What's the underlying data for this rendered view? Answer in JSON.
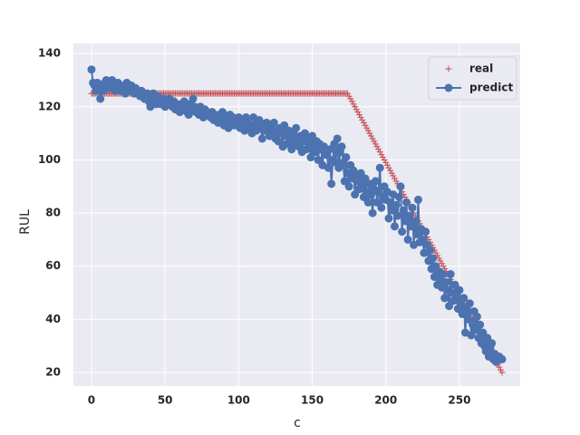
{
  "chart_data": {
    "type": "line",
    "xlabel": "c",
    "ylabel": "RUL",
    "xlim": [
      -12.3,
      291.3
    ],
    "ylim": [
      14.9,
      143.8
    ],
    "xticks": [
      0,
      50,
      100,
      150,
      200,
      250
    ],
    "yticks": [
      20,
      40,
      60,
      80,
      100,
      120,
      140
    ],
    "grid": true,
    "legend": "upper right",
    "x": [
      0,
      1,
      2,
      3,
      4,
      5,
      6,
      7,
      8,
      9,
      10,
      11,
      12,
      13,
      14,
      15,
      16,
      17,
      18,
      19,
      20,
      21,
      22,
      23,
      24,
      25,
      26,
      27,
      28,
      29,
      30,
      31,
      32,
      33,
      34,
      35,
      36,
      37,
      38,
      39,
      40,
      41,
      42,
      43,
      44,
      45,
      46,
      47,
      48,
      49,
      50,
      51,
      52,
      53,
      54,
      55,
      56,
      57,
      58,
      59,
      60,
      61,
      62,
      63,
      64,
      65,
      66,
      67,
      68,
      69,
      70,
      71,
      72,
      73,
      74,
      75,
      76,
      77,
      78,
      79,
      80,
      81,
      82,
      83,
      84,
      85,
      86,
      87,
      88,
      89,
      90,
      91,
      92,
      93,
      94,
      95,
      96,
      97,
      98,
      99,
      100,
      101,
      102,
      103,
      104,
      105,
      106,
      107,
      108,
      109,
      110,
      111,
      112,
      113,
      114,
      115,
      116,
      117,
      118,
      119,
      120,
      121,
      122,
      123,
      124,
      125,
      126,
      127,
      128,
      129,
      130,
      131,
      132,
      133,
      134,
      135,
      136,
      137,
      138,
      139,
      140,
      141,
      142,
      143,
      144,
      145,
      146,
      147,
      148,
      149,
      150,
      151,
      152,
      153,
      154,
      155,
      156,
      157,
      158,
      159,
      160,
      161,
      162,
      163,
      164,
      165,
      166,
      167,
      168,
      169,
      170,
      171,
      172,
      173,
      174,
      175,
      176,
      177,
      178,
      179,
      180,
      181,
      182,
      183,
      184,
      185,
      186,
      187,
      188,
      189,
      190,
      191,
      192,
      193,
      194,
      195,
      196,
      197,
      198,
      199,
      200,
      201,
      202,
      203,
      204,
      205,
      206,
      207,
      208,
      209,
      210,
      211,
      212,
      213,
      214,
      215,
      216,
      217,
      218,
      219,
      220,
      221,
      222,
      223,
      224,
      225,
      226,
      227,
      228,
      229,
      230,
      231,
      232,
      233,
      234,
      235,
      236,
      237,
      238,
      239,
      240,
      241,
      242,
      243,
      244,
      245,
      246,
      247,
      248,
      249,
      250,
      251,
      252,
      253,
      254,
      255,
      256,
      257,
      258,
      259,
      260,
      261,
      262,
      263,
      264,
      265,
      266,
      267,
      268,
      269,
      270,
      271,
      272,
      273,
      274,
      275,
      276,
      277,
      278,
      279
    ],
    "series": [
      {
        "name": "real",
        "color": "#c44e52",
        "marker": "plus",
        "values": [
          125,
          125,
          125,
          125,
          125,
          125,
          125,
          125,
          125,
          125,
          125,
          125,
          125,
          125,
          125,
          125,
          125,
          125,
          125,
          125,
          125,
          125,
          125,
          125,
          125,
          125,
          125,
          125,
          125,
          125,
          125,
          125,
          125,
          125,
          125,
          125,
          125,
          125,
          125,
          125,
          125,
          125,
          125,
          125,
          125,
          125,
          125,
          125,
          125,
          125,
          125,
          125,
          125,
          125,
          125,
          125,
          125,
          125,
          125,
          125,
          125,
          125,
          125,
          125,
          125,
          125,
          125,
          125,
          125,
          125,
          125,
          125,
          125,
          125,
          125,
          125,
          125,
          125,
          125,
          125,
          125,
          125,
          125,
          125,
          125,
          125,
          125,
          125,
          125,
          125,
          125,
          125,
          125,
          125,
          125,
          125,
          125,
          125,
          125,
          125,
          125,
          125,
          125,
          125,
          125,
          125,
          125,
          125,
          125,
          125,
          125,
          125,
          125,
          125,
          125,
          125,
          125,
          125,
          125,
          125,
          125,
          125,
          125,
          125,
          125,
          125,
          125,
          125,
          125,
          125,
          125,
          125,
          125,
          125,
          125,
          125,
          125,
          125,
          125,
          125,
          125,
          125,
          125,
          125,
          125,
          125,
          125,
          125,
          125,
          125,
          125,
          125,
          125,
          125,
          125,
          125,
          125,
          125,
          125,
          125,
          125,
          125,
          125,
          125,
          125,
          125,
          125,
          125,
          125,
          125,
          125,
          125,
          125,
          125,
          125,
          124,
          123,
          122,
          121,
          120,
          119,
          118,
          117,
          116,
          115,
          114,
          113,
          112,
          111,
          110,
          109,
          108,
          107,
          106,
          105,
          104,
          103,
          102,
          101,
          100,
          99,
          98,
          97,
          96,
          95,
          94,
          93,
          92,
          91,
          90,
          89,
          88,
          87,
          86,
          85,
          84,
          83,
          82,
          81,
          80,
          79,
          78,
          77,
          76,
          75,
          74,
          73,
          72,
          71,
          70,
          69,
          68,
          67,
          66,
          65,
          64,
          63,
          62,
          61,
          60,
          59,
          58,
          57,
          56,
          55,
          54,
          53,
          52,
          51,
          50,
          49,
          48,
          47,
          46,
          45,
          44,
          43,
          42,
          41,
          40,
          39,
          38,
          37,
          36,
          35,
          34,
          33,
          32,
          31,
          30,
          29,
          28,
          27,
          26,
          25,
          24,
          23,
          22,
          21,
          20
        ]
      },
      {
        "name": "predict",
        "color": "#4c72b0",
        "marker": "circle",
        "values": [
          134,
          129,
          128,
          126,
          129,
          127,
          123,
          128,
          126,
          129,
          130,
          128,
          127,
          129,
          130,
          128,
          126,
          127,
          129,
          128,
          126,
          127,
          128,
          125,
          129,
          127,
          126,
          128,
          126,
          125,
          127,
          126,
          125,
          124,
          126,
          125,
          123,
          124,
          125,
          122,
          120,
          124,
          125,
          122,
          121,
          124,
          123,
          121,
          122,
          123,
          120,
          121,
          122,
          123,
          121,
          120,
          122,
          119,
          121,
          120,
          118,
          121,
          119,
          122,
          120,
          118,
          117,
          121,
          119,
          123,
          120,
          118,
          119,
          117,
          120,
          118,
          116,
          119,
          117,
          118,
          117,
          116,
          118,
          115,
          117,
          116,
          114,
          117,
          115,
          118,
          113,
          116,
          115,
          112,
          117,
          114,
          116,
          113,
          115,
          114,
          116,
          112,
          115,
          113,
          111,
          116,
          114,
          112,
          113,
          110,
          116,
          113,
          111,
          114,
          115,
          112,
          108,
          113,
          111,
          114,
          112,
          109,
          113,
          110,
          114,
          108,
          111,
          107,
          112,
          110,
          105,
          113,
          109,
          106,
          111,
          108,
          104,
          110,
          106,
          112,
          108,
          105,
          109,
          103,
          107,
          110,
          104,
          108,
          106,
          101,
          109,
          105,
          103,
          107,
          100,
          106,
          104,
          98,
          105,
          102,
          102,
          97,
          104,
          91,
          100,
          106,
          99,
          108,
          97,
          103,
          105,
          99,
          92,
          101,
          95,
          90,
          98,
          93,
          96,
          87,
          94,
          92,
          89,
          95,
          91,
          86,
          93,
          88,
          84,
          91,
          87,
          80,
          89,
          92,
          84,
          88,
          97,
          82,
          86,
          90,
          85,
          88,
          78,
          84,
          81,
          87,
          75,
          83,
          79,
          86,
          90,
          73,
          81,
          77,
          84,
          70,
          79,
          75,
          82,
          68,
          77,
          72,
          85,
          69,
          74,
          70,
          65,
          73,
          68,
          62,
          66,
          59,
          63,
          56,
          60,
          53,
          58,
          55,
          52,
          57,
          48,
          54,
          51,
          45,
          57,
          50,
          47,
          53,
          49,
          44,
          51,
          46,
          42,
          48,
          35,
          44,
          40,
          46,
          34,
          38,
          43,
          36,
          41,
          33,
          38,
          31,
          35,
          30,
          28,
          33,
          26,
          29,
          31,
          25,
          27,
          24,
          25,
          26,
          25,
          25
        ]
      }
    ]
  }
}
